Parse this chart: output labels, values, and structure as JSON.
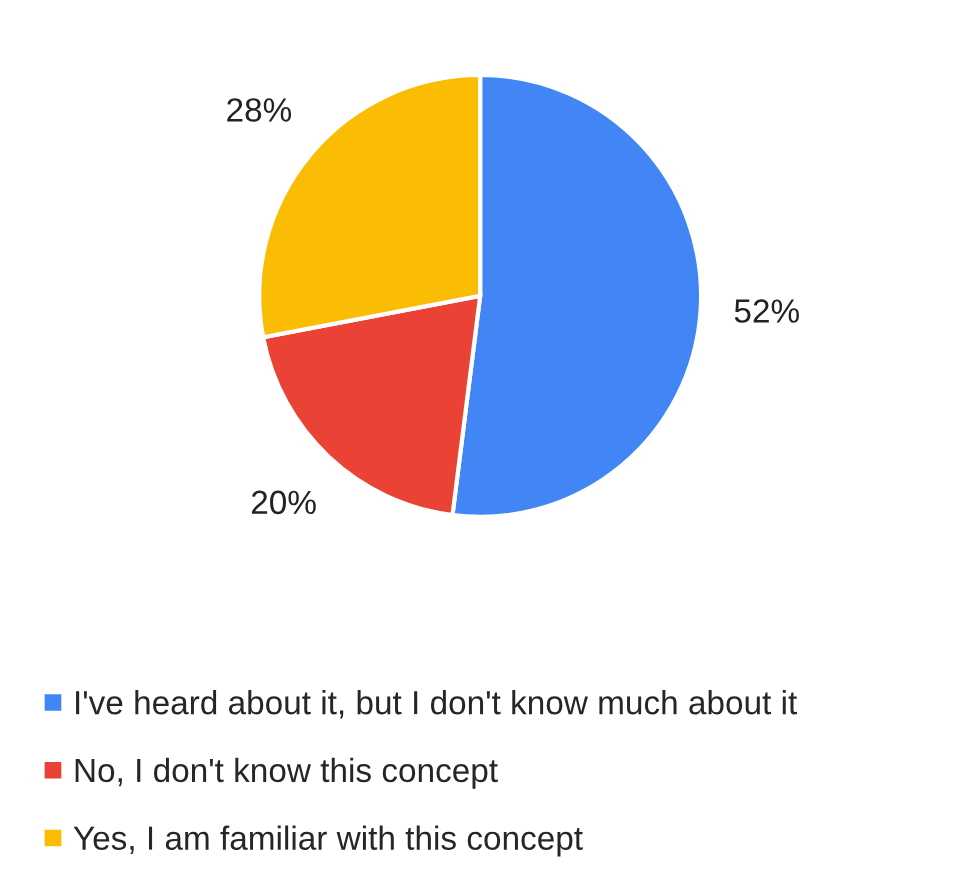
{
  "chart_data": {
    "type": "pie",
    "categories": [
      "I've heard about it, but I don't know much about it",
      "No, I don't know this concept",
      "Yes, I am familiar with this concept"
    ],
    "values": [
      52,
      20,
      28
    ],
    "value_labels": [
      "52%",
      "20%",
      "28%"
    ],
    "colors": [
      "#4285f4",
      "#ea4335",
      "#fbbc04"
    ],
    "legend": "bottom"
  }
}
